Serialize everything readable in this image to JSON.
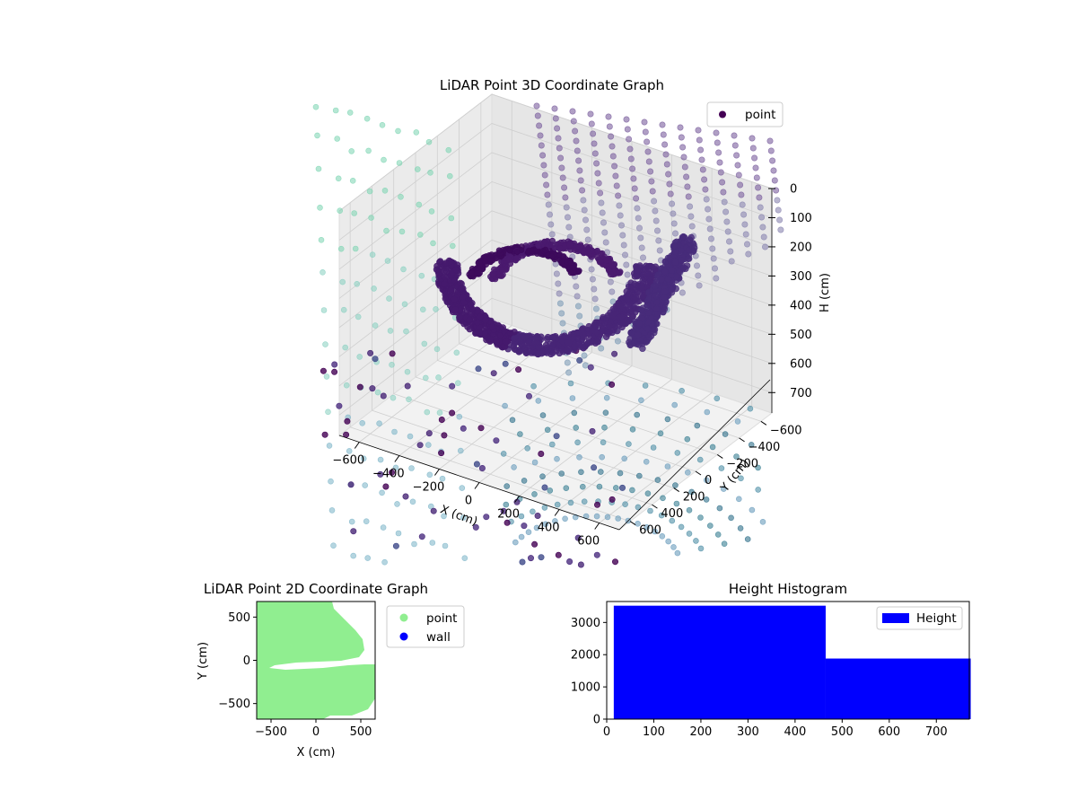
{
  "chart_data": [
    {
      "type": "scatter",
      "title": "LiDAR Point 3D Coordinate Graph",
      "xlabel": "X (cm)",
      "ylabel": "Y (cm)",
      "zlabel": "H (cm)",
      "xticks": [
        -600,
        -400,
        -200,
        0,
        200,
        400,
        600
      ],
      "yticks": [
        -600,
        -400,
        -200,
        0,
        200,
        400,
        600
      ],
      "zticks": [
        0,
        100,
        200,
        300,
        400,
        500,
        600,
        700
      ],
      "xlim": [
        -700,
        700
      ],
      "ylim": [
        -700,
        700
      ],
      "zlim": [
        0,
        770
      ],
      "z_inverted": true,
      "legend": [
        {
          "name": "point",
          "color": "#440154"
        }
      ],
      "legend_position": "upper-right",
      "colormap": "viridis",
      "grid": true
    },
    {
      "type": "scatter",
      "title": "LiDAR Point 2D Coordinate Graph",
      "xlabel": "X (cm)",
      "ylabel": "Y (cm)",
      "xticks": [
        -500,
        0,
        500
      ],
      "yticks": [
        -500,
        0,
        500
      ],
      "xlim": [
        -660,
        660
      ],
      "ylim": [
        -680,
        680
      ],
      "series": [
        {
          "name": "point",
          "color": "#90ee90"
        },
        {
          "name": "wall",
          "color": "#0000ff",
          "values": []
        }
      ],
      "legend_position": "outside-right"
    },
    {
      "type": "bar",
      "title": "Height Histogram",
      "xticks": [
        0,
        100,
        200,
        300,
        400,
        500,
        600,
        700
      ],
      "yticks": [
        0,
        1000,
        2000,
        3000
      ],
      "xlim": [
        0,
        770
      ],
      "ylim": [
        0,
        3650
      ],
      "bins": [
        {
          "x0": 15,
          "x1": 465,
          "count": 3520
        },
        {
          "x0": 465,
          "x1": 773,
          "count": 1880
        }
      ],
      "series": [
        {
          "name": "Height",
          "color": "#0000ff"
        }
      ],
      "legend_position": "upper-right"
    }
  ]
}
